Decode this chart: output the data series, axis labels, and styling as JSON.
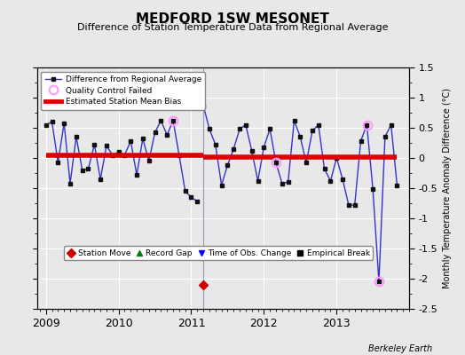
{
  "title": "MEDFORD 1SW MESONET",
  "subtitle": "Difference of Station Temperature Data from Regional Average",
  "ylabel": "Monthly Temperature Anomaly Difference (°C)",
  "credit": "Berkeley Earth",
  "background_color": "#e8e8e8",
  "ylim": [
    -2.5,
    1.5
  ],
  "yticks": [
    -2.5,
    -2.0,
    -1.5,
    -1.0,
    -0.5,
    0.0,
    0.5,
    1.0,
    1.5
  ],
  "bias1": 0.05,
  "bias2": 0.02,
  "break_x": 2011.17,
  "station_move_x": 2011.17,
  "station_move_y": -2.1,
  "qc_fail_points": [
    [
      2010.75,
      0.62
    ],
    [
      2012.17,
      -0.08
    ],
    [
      2013.42,
      0.55
    ],
    [
      2013.58,
      -2.05
    ]
  ],
  "series1_x": [
    2009.0,
    2009.083,
    2009.167,
    2009.25,
    2009.333,
    2009.417,
    2009.5,
    2009.583,
    2009.667,
    2009.75,
    2009.833,
    2009.917,
    2010.0,
    2010.083,
    2010.167,
    2010.25,
    2010.333,
    2010.417,
    2010.5,
    2010.583,
    2010.667,
    2010.75,
    2010.833,
    2010.917,
    2011.0,
    2011.083
  ],
  "series1_y": [
    0.55,
    0.6,
    -0.08,
    0.58,
    -0.42,
    0.35,
    -0.2,
    -0.18,
    0.22,
    -0.35,
    0.2,
    0.05,
    0.1,
    0.05,
    0.28,
    -0.28,
    0.32,
    -0.05,
    0.42,
    0.62,
    0.38,
    0.62,
    0.05,
    -0.55,
    -0.65,
    -0.72
  ],
  "series2_x": [
    2011.17,
    2011.25,
    2011.333,
    2011.417,
    2011.5,
    2011.583,
    2011.667,
    2011.75,
    2011.833,
    2011.917,
    2012.0,
    2012.083,
    2012.167,
    2012.25,
    2012.333,
    2012.417,
    2012.5,
    2012.583,
    2012.667,
    2012.75,
    2012.833,
    2012.917,
    2013.0,
    2013.083,
    2013.167,
    2013.25,
    2013.333,
    2013.417,
    2013.5,
    2013.583,
    2013.667,
    2013.75,
    2013.833
  ],
  "series2_y": [
    0.85,
    0.48,
    0.22,
    -0.45,
    -0.12,
    0.15,
    0.48,
    0.55,
    0.12,
    -0.38,
    0.18,
    0.48,
    -0.08,
    -0.42,
    -0.4,
    0.62,
    0.35,
    -0.08,
    0.45,
    0.55,
    -0.18,
    -0.38,
    0.0,
    -0.35,
    -0.78,
    -0.78,
    0.28,
    0.55,
    -0.52,
    -2.05,
    0.35,
    0.55,
    -0.45
  ],
  "line_color": "#3333cc",
  "marker_color": "#111111",
  "bias_color": "#dd0000",
  "qc_color": "#ff99ff",
  "station_move_color": "#cc0000",
  "vline_color": "#9999bb",
  "xlim": [
    2008.88,
    2014.0
  ],
  "xtick_positions": [
    2009,
    2010,
    2011,
    2012,
    2013
  ],
  "xtick_labels": [
    "2009",
    "2010",
    "2011",
    "2012",
    "2013"
  ]
}
